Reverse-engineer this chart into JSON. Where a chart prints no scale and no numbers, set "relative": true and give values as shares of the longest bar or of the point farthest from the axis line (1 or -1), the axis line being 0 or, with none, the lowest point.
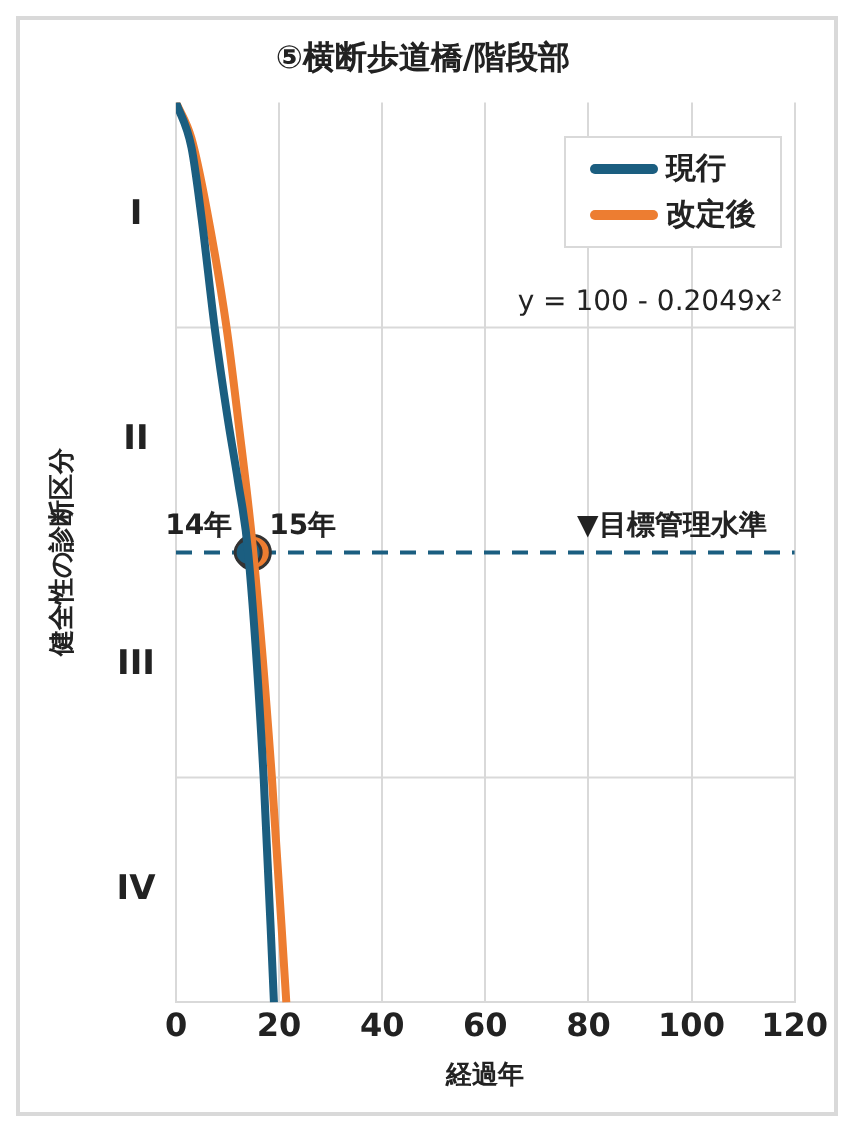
{
  "chart_data": {
    "type": "line",
    "title": "⑤横断歩道橋/階段部",
    "xlabel": "経過年",
    "ylabel": "健全性の診断区分",
    "relative": true,
    "xlim": [
      0,
      120
    ],
    "xticks": [
      0,
      20,
      40,
      60,
      80,
      100,
      120
    ],
    "grid": "x",
    "legend": "top right",
    "series": [
      {
        "name": "現行",
        "color": "#1b5e80",
        "x": [
          0,
          3,
          5,
          7.5,
          10,
          12,
          14,
          17,
          19
        ],
        "values": [
          1,
          0.95,
          0.87,
          0.75,
          0.65,
          0.58,
          0.5,
          0.25,
          0
        ]
      },
      {
        "name": "改定後",
        "color": "#ed7d31",
        "x": [
          0,
          3,
          6,
          9.8,
          12,
          15,
          18.6,
          21.4
        ],
        "values": [
          1,
          0.96,
          0.88,
          0.75,
          0.65,
          0.5,
          0.25,
          0
        ]
      },
      {
        "type": "scatter",
        "color": "#1b5e80",
        "x": [
          14
        ],
        "values": [
          0.5
        ],
        "marker": "circle"
      },
      {
        "type": "scatter",
        "color": "#ed7d31",
        "x": [
          15
        ],
        "values": [
          0.5
        ],
        "marker": "circle"
      }
    ],
    "ref_lines": [
      {
        "axis": "y",
        "value": 0.75,
        "color": "#d9d9d9",
        "line_style": "solid"
      },
      {
        "axis": "y",
        "value": 0.5,
        "label": "▼目標管理水準",
        "color": "#1b5e80",
        "line_style": "dashed"
      },
      {
        "axis": "y",
        "value": 0.25,
        "color": "#d9d9d9",
        "line_style": "solid"
      }
    ],
    "annotations": [
      "I",
      "II",
      "III",
      "IV",
      "y = 100 - 0.2049x²",
      {
        "text": "14年",
        "x": 14,
        "y": 0.5
      },
      {
        "text": "15年",
        "x": 15,
        "y": 0.5
      }
    ]
  }
}
